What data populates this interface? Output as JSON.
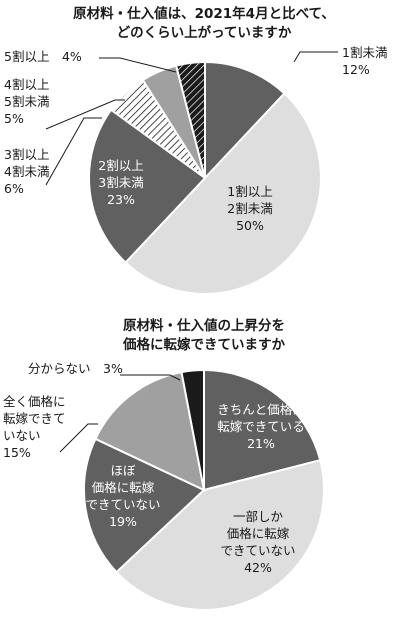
{
  "colors": {
    "black": "#1a1a1a",
    "dark": "#606060",
    "light": "#dedede",
    "mid": "#a0a0a0",
    "white": "#ffffff",
    "hatch_bg": "#ffffff"
  },
  "chart_data": [
    {
      "type": "pie",
      "title_lines": [
        "原材料・仕入値は、2021年4月と比べて、",
        "どのくらい上がっていますか"
      ],
      "slices": [
        {
          "label_lines": [
            "1割未満",
            "12%"
          ],
          "value": 12,
          "fill": "dark"
        },
        {
          "label_lines": [
            "1割以上",
            "2割未満",
            "50%"
          ],
          "value": 50,
          "fill": "light"
        },
        {
          "label_lines": [
            "2割以上",
            "3割未満",
            "23%"
          ],
          "value": 23,
          "fill": "dark"
        },
        {
          "label_lines": [
            "3割以上",
            "4割未満",
            "6%"
          ],
          "value": 6,
          "fill": "hatch-dense"
        },
        {
          "label_lines": [
            "4割以上",
            "5割未満",
            "5%"
          ],
          "value": 5,
          "fill": "mid"
        },
        {
          "label_lines": [
            "5割以上",
            "4%"
          ],
          "value": 4,
          "fill": "hatch-black"
        }
      ]
    },
    {
      "type": "pie",
      "title_lines": [
        "原材料・仕入値の上昇分を",
        "価格に転嫁できていますか"
      ],
      "slices": [
        {
          "label_lines": [
            "きちんと価格に",
            "転嫁できている",
            "21%"
          ],
          "value": 21,
          "fill": "dark"
        },
        {
          "label_lines": [
            "一部しか",
            "価格に転嫁",
            "できていない",
            "42%"
          ],
          "value": 42,
          "fill": "light"
        },
        {
          "label_lines": [
            "ほぼ",
            "価格に転嫁",
            "できていない",
            "19%"
          ],
          "value": 19,
          "fill": "dark"
        },
        {
          "label_lines": [
            "全く価格に",
            "転嫁できて",
            "いない",
            "15%"
          ],
          "value": 15,
          "fill": "mid"
        },
        {
          "label_lines": [
            "分からない",
            "3%"
          ],
          "value": 3,
          "fill": "black"
        }
      ]
    }
  ]
}
